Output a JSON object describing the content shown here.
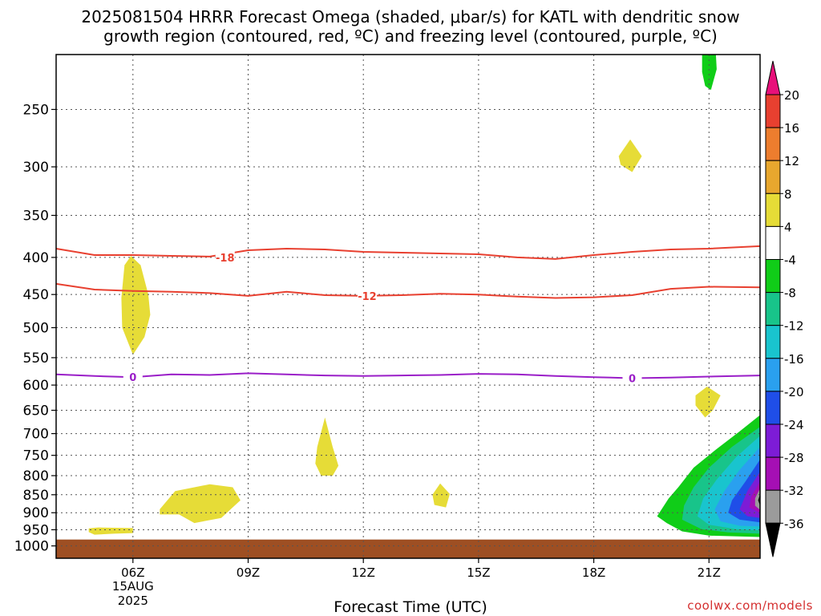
{
  "title_line1": "2025081504 HRRR Forecast Omega (shaded, μbar/s) for KATL with dendritic snow",
  "title_line2": "growth region (contoured, red, ºC) and freezing level (contoured, purple, ºC)",
  "credit": "coolwx.com/models",
  "chart_data": {
    "type": "time-height cross section",
    "xlabel": "Forecast Time (UTC)",
    "x_range_hours": [
      4,
      22.33
    ],
    "x_ticks": [
      {
        "hour": 6,
        "label": "06Z",
        "sublabel1": "15AUG",
        "sublabel2": "2025"
      },
      {
        "hour": 9,
        "label": "09Z"
      },
      {
        "hour": 12,
        "label": "12Z"
      },
      {
        "hour": 15,
        "label": "15Z"
      },
      {
        "hour": 18,
        "label": "18Z"
      },
      {
        "hour": 21,
        "label": "21Z"
      }
    ],
    "y_axis": {
      "scale": "log",
      "unit": "hPa",
      "range": [
        210,
        1040
      ],
      "ticks": [
        250,
        300,
        350,
        400,
        450,
        500,
        550,
        600,
        650,
        700,
        750,
        800,
        850,
        900,
        950,
        1000
      ]
    },
    "grid": "dotted",
    "surface_pressure_hPa": 980,
    "ground_color": "#9e4f23",
    "contours": [
      {
        "label": "-18",
        "color": "#e84030",
        "points": [
          [
            4,
            389
          ],
          [
            5,
            397
          ],
          [
            6,
            397
          ],
          [
            7,
            398
          ],
          [
            8,
            399
          ],
          [
            9,
            391
          ],
          [
            10,
            389
          ],
          [
            11,
            390
          ],
          [
            12,
            393
          ],
          [
            13,
            394
          ],
          [
            14,
            395
          ],
          [
            15,
            396
          ],
          [
            16,
            400
          ],
          [
            17,
            402
          ],
          [
            18,
            397
          ],
          [
            19,
            393
          ],
          [
            20,
            390
          ],
          [
            21,
            389
          ],
          [
            22.33,
            386
          ]
        ],
        "label_at": [
          8.4,
          400
        ]
      },
      {
        "label": "-12",
        "color": "#e84030",
        "points": [
          [
            4,
            435
          ],
          [
            5,
            443
          ],
          [
            6,
            445
          ],
          [
            7,
            446
          ],
          [
            8,
            448
          ],
          [
            9,
            452
          ],
          [
            10,
            446
          ],
          [
            11,
            451
          ],
          [
            12,
            452
          ],
          [
            13,
            451
          ],
          [
            14,
            449
          ],
          [
            15,
            450
          ],
          [
            16,
            453
          ],
          [
            17,
            455
          ],
          [
            18,
            454
          ],
          [
            19,
            451
          ],
          [
            20,
            442
          ],
          [
            21,
            439
          ],
          [
            22.33,
            440
          ]
        ],
        "label_at": [
          12.1,
          452
        ]
      },
      {
        "label": "0",
        "color": "#9a1ec8",
        "points": [
          [
            4,
            580
          ],
          [
            5,
            583
          ],
          [
            6,
            585
          ],
          [
            7,
            580
          ],
          [
            8,
            581
          ],
          [
            9,
            578
          ],
          [
            10,
            580
          ],
          [
            11,
            582
          ],
          [
            12,
            583
          ],
          [
            13,
            582
          ],
          [
            14,
            581
          ],
          [
            15,
            579
          ],
          [
            16,
            580
          ],
          [
            17,
            583
          ],
          [
            18,
            585
          ],
          [
            19,
            587
          ],
          [
            20,
            586
          ],
          [
            21,
            584
          ],
          [
            22.33,
            582
          ]
        ],
        "label_at": [
          6.0,
          585
        ],
        "label2_at": [
          19.0,
          587
        ]
      }
    ],
    "regions": [
      {
        "value": 4,
        "color": "#e6dc37",
        "points": [
          [
            5.78,
            410
          ],
          [
            5.95,
            398
          ],
          [
            6.2,
            410
          ],
          [
            6.4,
            450
          ],
          [
            6.45,
            480
          ],
          [
            6.3,
            515
          ],
          [
            6.0,
            545
          ],
          [
            5.72,
            500
          ],
          [
            5.7,
            455
          ]
        ]
      },
      {
        "value": 4,
        "color": "#e6dc37",
        "points": [
          [
            4.85,
            946
          ],
          [
            5.1,
            943
          ],
          [
            5.5,
            944
          ],
          [
            6.0,
            945
          ],
          [
            6.0,
            960
          ],
          [
            5.5,
            962
          ],
          [
            5.0,
            965
          ],
          [
            4.85,
            957
          ]
        ]
      },
      {
        "value": 4,
        "color": "#e6dc37",
        "points": [
          [
            6.7,
            890
          ],
          [
            7.1,
            840
          ],
          [
            8.0,
            822
          ],
          [
            8.6,
            830
          ],
          [
            8.8,
            865
          ],
          [
            8.3,
            915
          ],
          [
            7.6,
            930
          ],
          [
            7.2,
            905
          ],
          [
            6.7,
            905
          ]
        ]
      },
      {
        "value": 4,
        "color": "#e6dc37",
        "points": [
          [
            10.8,
            730
          ],
          [
            11.0,
            665
          ],
          [
            11.2,
            730
          ],
          [
            11.35,
            775
          ],
          [
            11.2,
            800
          ],
          [
            10.9,
            800
          ],
          [
            10.75,
            770
          ]
        ]
      },
      {
        "value": 4,
        "color": "#e6dc37",
        "points": [
          [
            13.8,
            850
          ],
          [
            14.0,
            820
          ],
          [
            14.25,
            848
          ],
          [
            14.15,
            885
          ],
          [
            13.85,
            878
          ]
        ]
      },
      {
        "value": 4,
        "color": "#e6dc37",
        "points": [
          [
            18.65,
            290
          ],
          [
            18.95,
            275
          ],
          [
            19.25,
            290
          ],
          [
            19.0,
            305
          ],
          [
            18.7,
            298
          ]
        ]
      },
      {
        "value": 4,
        "color": "#e6dc37",
        "points": [
          [
            20.65,
            620
          ],
          [
            20.95,
            603
          ],
          [
            21.3,
            620
          ],
          [
            21.1,
            650
          ],
          [
            20.9,
            665
          ],
          [
            20.65,
            640
          ]
        ]
      },
      {
        "value": -4,
        "color": "#10cd18",
        "points": [
          [
            20.82,
            210
          ],
          [
            21.18,
            210
          ],
          [
            21.2,
            220
          ],
          [
            21.05,
            235
          ],
          [
            20.9,
            232
          ],
          [
            20.82,
            222
          ]
        ]
      },
      {
        "value": -4,
        "color": "#10cd18",
        "points": [
          [
            22.33,
            660
          ],
          [
            21.8,
            695
          ],
          [
            21.2,
            735
          ],
          [
            20.6,
            780
          ],
          [
            20.2,
            830
          ],
          [
            19.95,
            860
          ],
          [
            19.65,
            910
          ],
          [
            19.9,
            930
          ],
          [
            20.3,
            955
          ],
          [
            21.0,
            968
          ],
          [
            22.33,
            972
          ]
        ]
      },
      {
        "value": -8,
        "color": "#18c48a",
        "points": [
          [
            22.33,
            685
          ],
          [
            21.6,
            730
          ],
          [
            21.0,
            780
          ],
          [
            20.6,
            830
          ],
          [
            20.35,
            880
          ],
          [
            20.3,
            920
          ],
          [
            20.8,
            948
          ],
          [
            21.5,
            958
          ],
          [
            22.33,
            962
          ]
        ]
      },
      {
        "value": -12,
        "color": "#19c4ce",
        "points": [
          [
            22.33,
            705
          ],
          [
            21.7,
            755
          ],
          [
            21.2,
            810
          ],
          [
            20.85,
            860
          ],
          [
            20.7,
            910
          ],
          [
            21.0,
            935
          ],
          [
            21.7,
            948
          ],
          [
            22.33,
            952
          ]
        ]
      },
      {
        "value": -16,
        "color": "#2aa0ef",
        "points": [
          [
            22.33,
            730
          ],
          [
            21.8,
            785
          ],
          [
            21.4,
            840
          ],
          [
            21.15,
            890
          ],
          [
            21.3,
            925
          ],
          [
            21.8,
            938
          ],
          [
            22.33,
            940
          ]
        ]
      },
      {
        "value": -20,
        "color": "#1f4ee8",
        "points": [
          [
            22.33,
            760
          ],
          [
            21.95,
            815
          ],
          [
            21.6,
            865
          ],
          [
            21.5,
            900
          ],
          [
            21.8,
            920
          ],
          [
            22.33,
            928
          ]
        ]
      },
      {
        "value": -24,
        "color": "#7d1cd6",
        "points": [
          [
            22.33,
            790
          ],
          [
            22.0,
            840
          ],
          [
            21.8,
            890
          ],
          [
            22.0,
            910
          ],
          [
            22.33,
            915
          ]
        ]
      },
      {
        "value": -28,
        "color": "#a50fb4",
        "points": [
          [
            22.33,
            815
          ],
          [
            22.1,
            855
          ],
          [
            22.05,
            885
          ],
          [
            22.33,
            900
          ]
        ]
      },
      {
        "value": -32,
        "color": "#9b9b9b",
        "points": [
          [
            22.33,
            833
          ],
          [
            22.2,
            860
          ],
          [
            22.2,
            880
          ],
          [
            22.33,
            892
          ]
        ]
      },
      {
        "value": -36,
        "color": "#000000",
        "points": [
          [
            22.33,
            848
          ],
          [
            22.28,
            865
          ],
          [
            22.33,
            880
          ]
        ]
      }
    ],
    "colorbar": [
      {
        "label": "20",
        "color": "#e8107a",
        "role": "top-arrow"
      },
      {
        "label": "16",
        "color": "#e84030"
      },
      {
        "label": "12",
        "color": "#ed7d2e"
      },
      {
        "label": "8",
        "color": "#e8a72e"
      },
      {
        "label": "4",
        "color": "#e6dc37"
      },
      {
        "label": "-4",
        "color": "#ffffff"
      },
      {
        "label": "-8",
        "color": "#10cd18"
      },
      {
        "label": "-12",
        "color": "#18c48a"
      },
      {
        "label": "-16",
        "color": "#19c4ce"
      },
      {
        "label": "-20",
        "color": "#2aa0ef"
      },
      {
        "label": "-24",
        "color": "#1f4ee8"
      },
      {
        "label": "-28",
        "color": "#7d1cd6"
      },
      {
        "label": "-32",
        "color": "#a50fb4"
      },
      {
        "label": "-36",
        "color": "#9b9b9b"
      },
      {
        "label": "",
        "color": "#000000",
        "role": "bottom-arrow"
      }
    ]
  }
}
